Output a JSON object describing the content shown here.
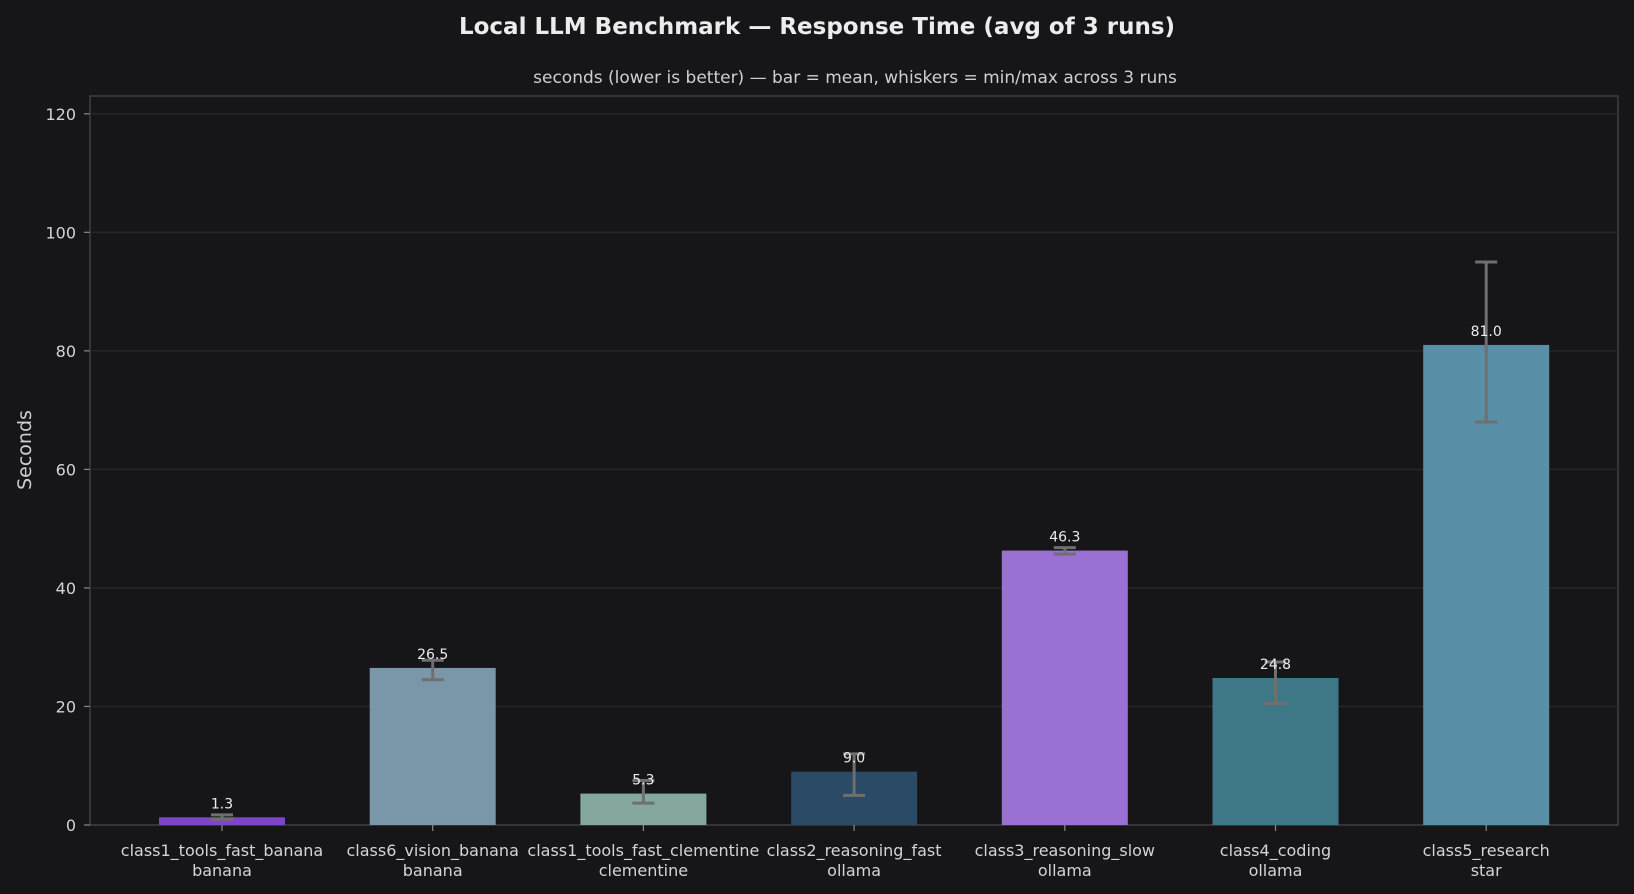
{
  "chart_data": {
    "type": "bar",
    "title": "Local LLM Benchmark — Response Time  (avg of 3 runs)",
    "subtitle": "seconds (lower is better) — bar = mean, whiskers = min/max across 3 runs",
    "ylabel": "Seconds",
    "xlabel": "",
    "ylim": [
      0,
      123
    ],
    "yticks": [
      0,
      20,
      40,
      60,
      80,
      100,
      120
    ],
    "grid": true,
    "categories": [
      {
        "name": "class1_tools_fast_banana",
        "host": "banana"
      },
      {
        "name": "class6_vision_banana",
        "host": "banana"
      },
      {
        "name": "class1_tools_fast_clementine",
        "host": "clementine"
      },
      {
        "name": "class2_reasoning_fast",
        "host": "ollama"
      },
      {
        "name": "class3_reasoning_slow",
        "host": "ollama"
      },
      {
        "name": "class4_coding",
        "host": "ollama"
      },
      {
        "name": "class5_research",
        "host": "star"
      }
    ],
    "values": [
      1.3,
      26.5,
      5.3,
      9.0,
      46.3,
      24.8,
      81.0
    ],
    "value_labels": [
      "1.3",
      "26.5",
      "5.3",
      "9.0",
      "46.3",
      "24.8",
      "81.0"
    ],
    "min": [
      1.0,
      24.5,
      3.7,
      5.0,
      45.7,
      20.5,
      68.0
    ],
    "max": [
      1.7,
      27.8,
      7.5,
      12.0,
      46.8,
      27.5,
      95.0
    ],
    "colors": [
      "#7e45c9",
      "#7a97aa",
      "#84a89d",
      "#2a4a65",
      "#9a71d2",
      "#3e7887",
      "#5a8fa8"
    ]
  }
}
